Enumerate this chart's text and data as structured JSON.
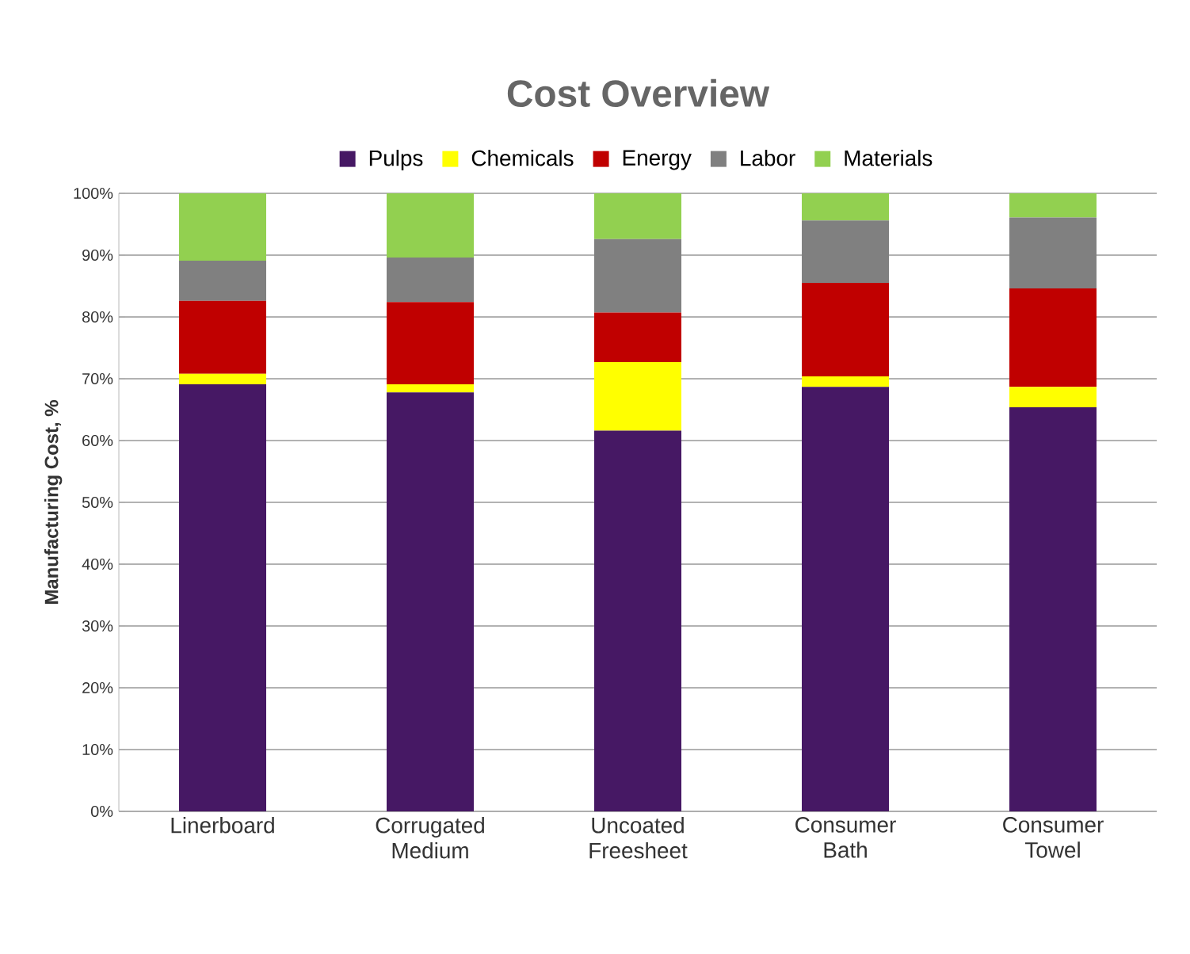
{
  "chart_data": {
    "type": "bar",
    "title": "Cost Overview",
    "ylabel": "Manufacturing Cost, %",
    "stacked": true,
    "categories": [
      "Linerboard",
      "Corrugated Medium",
      "Uncoated Freesheet",
      "Consumer Bath",
      "Consumer Towel"
    ],
    "series": [
      {
        "name": "Pulps",
        "color": "#461864",
        "values": [
          69.1,
          67.8,
          61.6,
          68.7,
          65.4
        ]
      },
      {
        "name": "Chemicals",
        "color": "#ffff00",
        "values": [
          1.7,
          1.3,
          11.1,
          1.7,
          3.3
        ]
      },
      {
        "name": "Energy",
        "color": "#c00000",
        "values": [
          11.8,
          13.3,
          8.0,
          15.1,
          15.9
        ]
      },
      {
        "name": "Labor",
        "color": "#808080",
        "values": [
          6.5,
          7.2,
          11.9,
          10.1,
          11.5
        ]
      },
      {
        "name": "Materials",
        "color": "#92d050",
        "values": [
          10.9,
          10.4,
          7.4,
          4.4,
          3.9
        ]
      }
    ],
    "ylim": [
      0,
      100
    ],
    "yticks": [
      {
        "value": 0,
        "label": "0%"
      },
      {
        "value": 10,
        "label": "10%"
      },
      {
        "value": 20,
        "label": "20%"
      },
      {
        "value": 30,
        "label": "30%"
      },
      {
        "value": 40,
        "label": "40%"
      },
      {
        "value": 50,
        "label": "50%"
      },
      {
        "value": 60,
        "label": "60%"
      },
      {
        "value": 70,
        "label": "70%"
      },
      {
        "value": 80,
        "label": "80%"
      },
      {
        "value": 90,
        "label": "90%"
      },
      {
        "value": 100,
        "label": "100%"
      }
    ],
    "grid": "y",
    "legend": "top"
  }
}
